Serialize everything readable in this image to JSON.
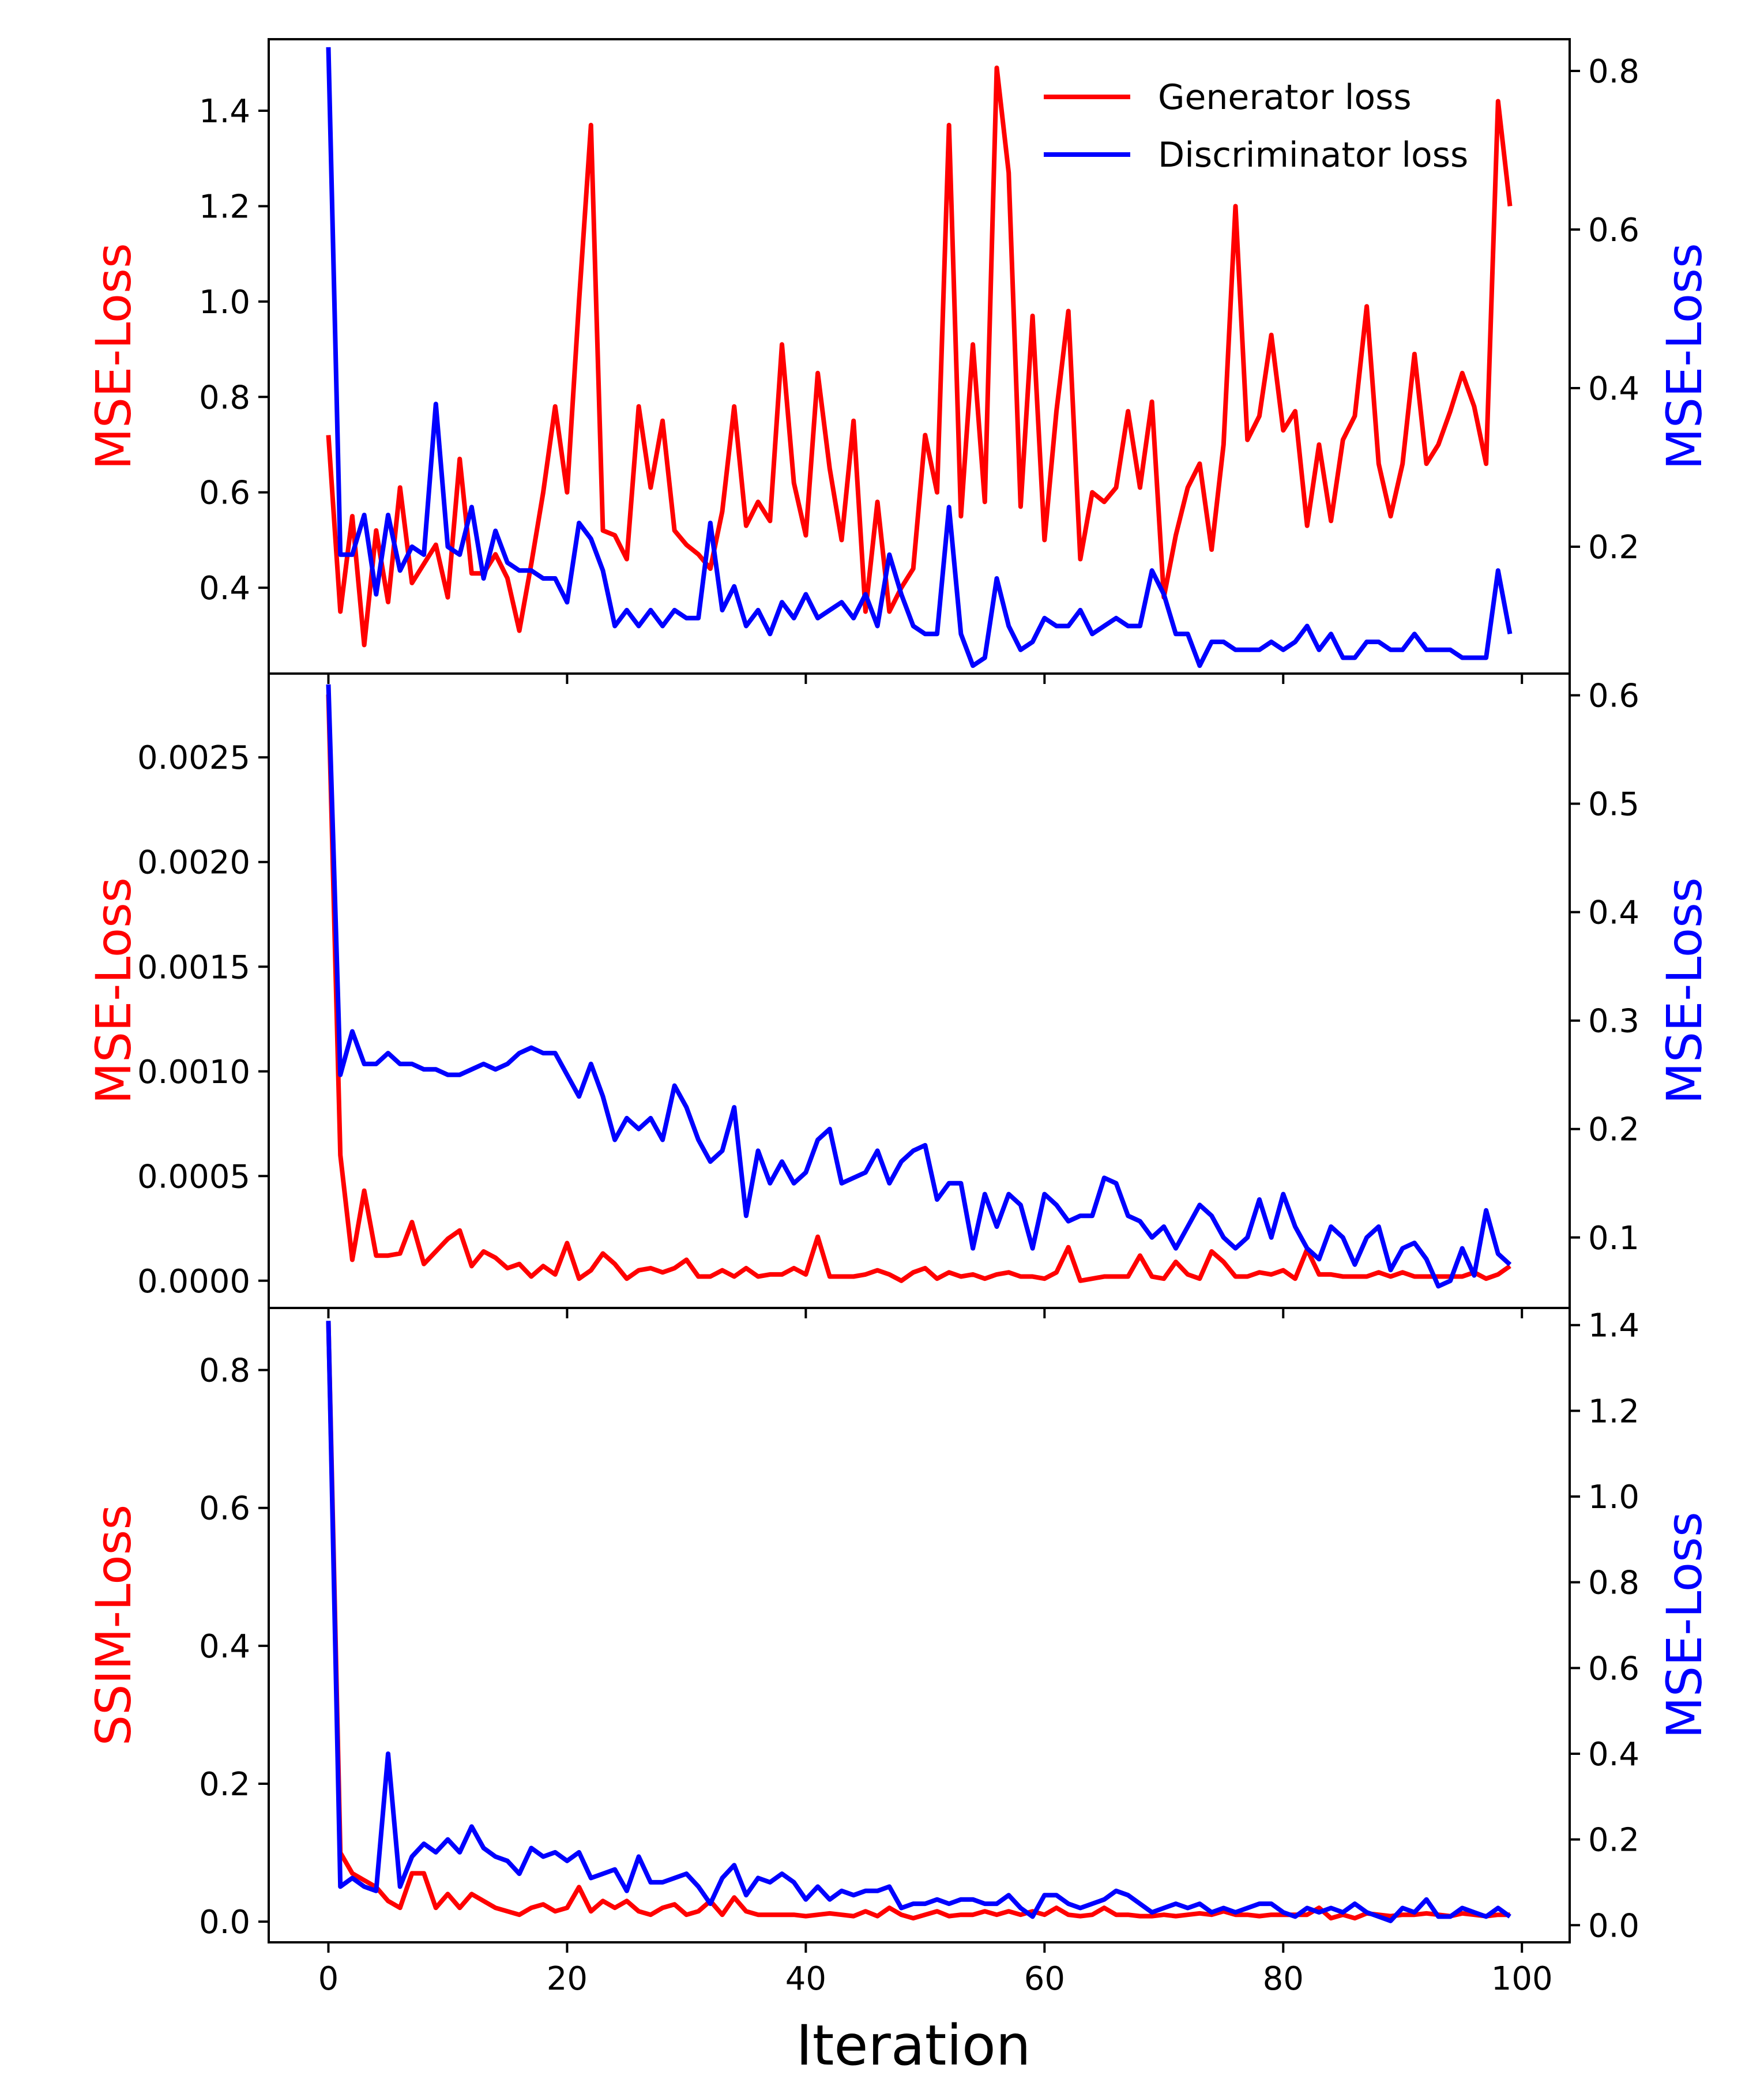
{
  "chart_data": [
    {
      "type": "line",
      "panel": "top",
      "xlim": [
        -5,
        104
      ],
      "x_ticks": [
        0,
        20,
        40,
        60,
        80,
        100
      ],
      "left_axis": {
        "label": "MSE-Loss",
        "color": "#ff0000",
        "ylim": [
          0.22,
          1.55
        ],
        "ticks": [
          0.4,
          0.6,
          0.8,
          1.0,
          1.2,
          1.4
        ],
        "tick_labels": [
          "0.4",
          "0.6",
          "0.8",
          "1.0",
          "1.2",
          "1.4"
        ]
      },
      "right_axis": {
        "label": "MSE-Loss",
        "color": "#0000ff",
        "ylim": [
          0.04,
          0.84
        ],
        "ticks": [
          0.2,
          0.4,
          0.6,
          0.8
        ],
        "tick_labels": [
          "0.2",
          "0.4",
          "0.6",
          "0.8"
        ]
      },
      "legend": {
        "position": "top-right",
        "entries": [
          {
            "label": "Generator loss",
            "color": "#ff0000"
          },
          {
            "label": "Discriminator loss",
            "color": "#0000ff"
          }
        ]
      },
      "series": [
        {
          "name": "Generator loss",
          "axis": "left",
          "color": "#ff0000",
          "values": [
            0.72,
            0.35,
            0.55,
            0.28,
            0.52,
            0.37,
            0.61,
            0.41,
            0.45,
            0.49,
            0.38,
            0.67,
            0.43,
            0.43,
            0.47,
            0.42,
            0.31,
            0.45,
            0.6,
            0.78,
            0.6,
            1.0,
            1.37,
            0.52,
            0.51,
            0.46,
            0.78,
            0.61,
            0.75,
            0.52,
            0.49,
            0.47,
            0.44,
            0.56,
            0.78,
            0.53,
            0.58,
            0.54,
            0.91,
            0.62,
            0.51,
            0.85,
            0.65,
            0.5,
            0.75,
            0.35,
            0.58,
            0.35,
            0.4,
            0.44,
            0.72,
            0.6,
            1.37,
            0.55,
            0.91,
            0.58,
            1.49,
            1.27,
            0.57,
            0.97,
            0.5,
            0.77,
            0.98,
            0.46,
            0.6,
            0.58,
            0.61,
            0.77,
            0.61,
            0.79,
            0.38,
            0.51,
            0.61,
            0.66,
            0.48,
            0.7,
            1.2,
            0.71,
            0.76,
            0.93,
            0.73,
            0.77,
            0.53,
            0.7,
            0.54,
            0.71,
            0.76,
            0.99,
            0.66,
            0.55,
            0.66,
            0.89,
            0.66,
            0.7,
            0.77,
            0.85,
            0.78,
            0.66,
            1.42,
            1.2
          ]
        },
        {
          "name": "Discriminator loss",
          "axis": "right",
          "color": "#0000ff",
          "values": [
            0.83,
            0.19,
            0.19,
            0.24,
            0.14,
            0.24,
            0.17,
            0.2,
            0.19,
            0.38,
            0.2,
            0.19,
            0.25,
            0.16,
            0.22,
            0.18,
            0.17,
            0.17,
            0.16,
            0.16,
            0.13,
            0.23,
            0.21,
            0.17,
            0.1,
            0.12,
            0.1,
            0.12,
            0.1,
            0.12,
            0.11,
            0.11,
            0.23,
            0.12,
            0.15,
            0.1,
            0.12,
            0.09,
            0.13,
            0.11,
            0.14,
            0.11,
            0.12,
            0.13,
            0.11,
            0.14,
            0.1,
            0.19,
            0.14,
            0.1,
            0.09,
            0.09,
            0.25,
            0.09,
            0.05,
            0.06,
            0.16,
            0.1,
            0.07,
            0.08,
            0.11,
            0.1,
            0.1,
            0.12,
            0.09,
            0.1,
            0.11,
            0.1,
            0.1,
            0.17,
            0.14,
            0.09,
            0.09,
            0.05,
            0.08,
            0.08,
            0.07,
            0.07,
            0.07,
            0.08,
            0.07,
            0.08,
            0.1,
            0.07,
            0.09,
            0.06,
            0.06,
            0.08,
            0.08,
            0.07,
            0.07,
            0.09,
            0.07,
            0.07,
            0.07,
            0.06,
            0.06,
            0.06,
            0.17,
            0.09
          ]
        }
      ]
    },
    {
      "type": "line",
      "panel": "middle",
      "xlim": [
        -5,
        104
      ],
      "x_ticks": [
        0,
        20,
        40,
        60,
        80,
        100
      ],
      "left_axis": {
        "label": "MSE-Loss",
        "color": "#ff0000",
        "ylim": [
          -0.00013,
          0.0029
        ],
        "ticks": [
          0,
          0.0005,
          0.001,
          0.0015,
          0.002,
          0.0025
        ],
        "tick_labels": [
          "0.0000",
          "0.0005",
          "0.0010",
          "0.0015",
          "0.0020",
          "0.0025"
        ]
      },
      "right_axis": {
        "label": "MSE-Loss",
        "color": "#0000ff",
        "ylim": [
          0.035,
          0.62
        ],
        "ticks": [
          0.1,
          0.2,
          0.3,
          0.4,
          0.5,
          0.6
        ],
        "tick_labels": [
          "0.1",
          "0.2",
          "0.3",
          "0.4",
          "0.5",
          "0.6"
        ]
      },
      "series": [
        {
          "name": "Generator loss",
          "axis": "left",
          "color": "#ff0000",
          "values": [
            0.0028,
            0.0006,
            0.0001,
            0.00043,
            0.00012,
            0.00012,
            0.00013,
            0.00028,
            8e-05,
            0.00014,
            0.0002,
            0.00024,
            7e-05,
            0.00014,
            0.00011,
            6e-05,
            8e-05,
            2e-05,
            7e-05,
            3e-05,
            0.00018,
            1e-05,
            5e-05,
            0.00013,
            8e-05,
            1e-05,
            5e-05,
            6e-05,
            4e-05,
            6e-05,
            0.0001,
            2e-05,
            2e-05,
            5e-05,
            2e-05,
            6e-05,
            2e-05,
            3e-05,
            3e-05,
            6e-05,
            3e-05,
            0.00021,
            2e-05,
            2e-05,
            2e-05,
            3e-05,
            5e-05,
            3e-05,
            0.0,
            4e-05,
            6e-05,
            1e-05,
            4e-05,
            2e-05,
            3e-05,
            1e-05,
            3e-05,
            4e-05,
            2e-05,
            2e-05,
            1e-05,
            4e-05,
            0.00016,
            0.0,
            1e-05,
            2e-05,
            2e-05,
            2e-05,
            0.00012,
            2e-05,
            1e-05,
            9e-05,
            3e-05,
            1e-05,
            0.00014,
            9e-05,
            2e-05,
            2e-05,
            4e-05,
            3e-05,
            5e-05,
            1e-05,
            0.00015,
            3e-05,
            3e-05,
            2e-05,
            2e-05,
            2e-05,
            4e-05,
            2e-05,
            4e-05,
            2e-05,
            2e-05,
            2e-05,
            2e-05,
            2e-05,
            4e-05,
            1e-05,
            3e-05,
            7e-05
          ]
        },
        {
          "name": "Discriminator loss",
          "axis": "right",
          "color": "#0000ff",
          "values": [
            0.61,
            0.25,
            0.29,
            0.26,
            0.26,
            0.27,
            0.26,
            0.26,
            0.255,
            0.255,
            0.25,
            0.25,
            0.255,
            0.26,
            0.255,
            0.26,
            0.27,
            0.275,
            0.27,
            0.27,
            0.25,
            0.23,
            0.26,
            0.23,
            0.19,
            0.21,
            0.2,
            0.21,
            0.19,
            0.24,
            0.22,
            0.19,
            0.17,
            0.18,
            0.22,
            0.12,
            0.18,
            0.15,
            0.17,
            0.15,
            0.16,
            0.19,
            0.2,
            0.15,
            0.155,
            0.16,
            0.18,
            0.15,
            0.17,
            0.18,
            0.185,
            0.135,
            0.15,
            0.15,
            0.09,
            0.14,
            0.11,
            0.14,
            0.13,
            0.09,
            0.14,
            0.13,
            0.115,
            0.12,
            0.12,
            0.155,
            0.15,
            0.12,
            0.115,
            0.1,
            0.11,
            0.09,
            0.11,
            0.13,
            0.12,
            0.1,
            0.09,
            0.1,
            0.135,
            0.1,
            0.14,
            0.11,
            0.09,
            0.08,
            0.11,
            0.1,
            0.075,
            0.1,
            0.11,
            0.07,
            0.09,
            0.095,
            0.08,
            0.055,
            0.06,
            0.09,
            0.065,
            0.125,
            0.085,
            0.075
          ]
        }
      ]
    },
    {
      "type": "line",
      "panel": "bottom",
      "xlim": [
        -5,
        104
      ],
      "x_ticks": [
        0,
        20,
        40,
        60,
        80,
        100
      ],
      "x_tick_labels": [
        "0",
        "20",
        "40",
        "60",
        "80",
        "100"
      ],
      "xlabel": "Iteration",
      "left_axis": {
        "label": "SSIM-Loss",
        "color": "#ff0000",
        "ylim": [
          -0.03,
          0.89
        ],
        "ticks": [
          0.0,
          0.2,
          0.4,
          0.6,
          0.8
        ],
        "tick_labels": [
          "0.0",
          "0.2",
          "0.4",
          "0.6",
          "0.8"
        ]
      },
      "right_axis": {
        "label": "MSE-Loss",
        "color": "#0000ff",
        "ylim": [
          -0.04,
          1.44
        ],
        "ticks": [
          0.0,
          0.2,
          0.4,
          0.6,
          0.8,
          1.0,
          1.2,
          1.4
        ],
        "tick_labels": [
          "0.0",
          "0.2",
          "0.4",
          "0.6",
          "0.8",
          "1.0",
          "1.2",
          "1.4"
        ]
      },
      "series": [
        {
          "name": "Generator loss",
          "axis": "left",
          "color": "#ff0000",
          "values": [
            0.87,
            0.1,
            0.07,
            0.06,
            0.05,
            0.03,
            0.02,
            0.07,
            0.07,
            0.02,
            0.04,
            0.02,
            0.04,
            0.03,
            0.02,
            0.015,
            0.01,
            0.02,
            0.025,
            0.015,
            0.02,
            0.05,
            0.015,
            0.03,
            0.02,
            0.03,
            0.015,
            0.01,
            0.02,
            0.025,
            0.01,
            0.015,
            0.03,
            0.01,
            0.035,
            0.015,
            0.01,
            0.01,
            0.01,
            0.01,
            0.008,
            0.01,
            0.012,
            0.01,
            0.008,
            0.015,
            0.008,
            0.02,
            0.01,
            0.005,
            0.01,
            0.015,
            0.008,
            0.01,
            0.01,
            0.015,
            0.01,
            0.015,
            0.01,
            0.015,
            0.01,
            0.02,
            0.01,
            0.008,
            0.01,
            0.02,
            0.01,
            0.01,
            0.008,
            0.008,
            0.01,
            0.008,
            0.01,
            0.012,
            0.01,
            0.015,
            0.01,
            0.01,
            0.008,
            0.01,
            0.01,
            0.01,
            0.01,
            0.02,
            0.005,
            0.01,
            0.005,
            0.012,
            0.01,
            0.008,
            0.01,
            0.01,
            0.012,
            0.01,
            0.008,
            0.012,
            0.01,
            0.008,
            0.01,
            0.01
          ]
        },
        {
          "name": "Discriminator loss",
          "axis": "right",
          "color": "#0000ff",
          "values": [
            1.41,
            0.09,
            0.11,
            0.09,
            0.08,
            0.4,
            0.09,
            0.16,
            0.19,
            0.17,
            0.2,
            0.17,
            0.23,
            0.18,
            0.16,
            0.15,
            0.12,
            0.18,
            0.16,
            0.17,
            0.15,
            0.17,
            0.11,
            0.12,
            0.13,
            0.08,
            0.16,
            0.1,
            0.1,
            0.11,
            0.12,
            0.09,
            0.05,
            0.11,
            0.14,
            0.07,
            0.11,
            0.1,
            0.12,
            0.1,
            0.06,
            0.09,
            0.06,
            0.08,
            0.07,
            0.08,
            0.08,
            0.09,
            0.04,
            0.05,
            0.05,
            0.06,
            0.05,
            0.06,
            0.06,
            0.05,
            0.05,
            0.07,
            0.04,
            0.02,
            0.07,
            0.07,
            0.05,
            0.04,
            0.05,
            0.06,
            0.08,
            0.07,
            0.05,
            0.03,
            0.04,
            0.05,
            0.04,
            0.05,
            0.03,
            0.04,
            0.03,
            0.04,
            0.05,
            0.05,
            0.03,
            0.02,
            0.04,
            0.03,
            0.04,
            0.03,
            0.05,
            0.03,
            0.02,
            0.01,
            0.04,
            0.03,
            0.06,
            0.02,
            0.02,
            0.04,
            0.03,
            0.02,
            0.04,
            0.02
          ]
        }
      ]
    }
  ]
}
